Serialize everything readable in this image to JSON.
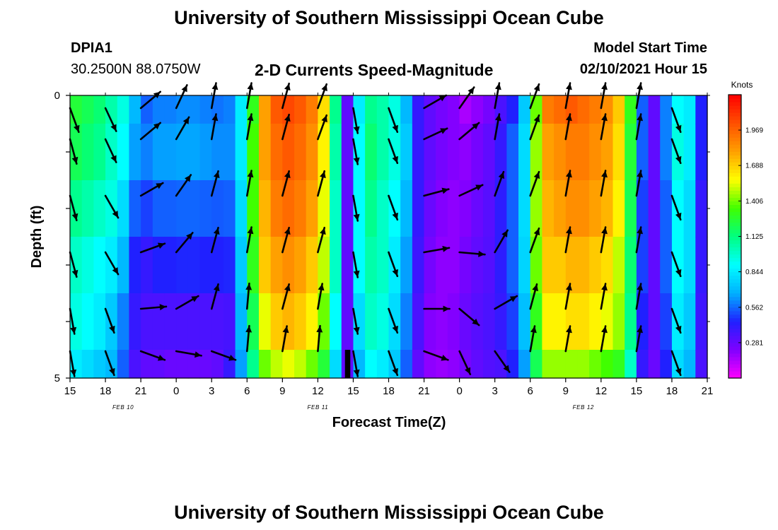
{
  "page": {
    "title_top": "University of Southern Mississippi Ocean Cube",
    "title_bottom": "University of Southern Mississippi Ocean Cube",
    "station_id": "DPIA1",
    "station_coords": "30.2500N 88.0750W",
    "plot_title": "2-D Currents Speed-Magnitude",
    "model_start_label": "Model Start Time",
    "model_start_value": "02/10/2021 Hour 15"
  },
  "chart_data": {
    "type": "heatmap",
    "title": "2-D Currents Speed-Magnitude",
    "xlabel": "Forecast Time(Z)",
    "ylabel": "Depth (ft)",
    "x_tick_labels": [
      "15",
      "18",
      "21",
      "0",
      "3",
      "6",
      "9",
      "12",
      "15",
      "18",
      "21",
      "0",
      "3",
      "6",
      "9",
      "12",
      "15",
      "18",
      "21"
    ],
    "x_range_hours": [
      0,
      54
    ],
    "date_labels": [
      {
        "text": "FEB 10",
        "hour": 4.5
      },
      {
        "text": "FEB 11",
        "hour": 21
      },
      {
        "text": "FEB 12",
        "hour": 43.5
      }
    ],
    "y_tick_labels": [
      {
        "text": "0",
        "depth": 0
      },
      {
        "text": "5",
        "depth": 5
      }
    ],
    "ylim": [
      0,
      5
    ],
    "colorbar": {
      "unit": "Knots",
      "min": 0.0,
      "max": 2.25,
      "tick_labels": [
        "1.969",
        "1.688",
        "1.406",
        "1.125",
        "0.844",
        "0.562",
        "0.281"
      ],
      "tick_values": [
        1.969,
        1.688,
        1.406,
        1.125,
        0.844,
        0.562,
        0.281
      ]
    },
    "colormap": [
      "#ff00ff",
      "#8000ff",
      "#2020ff",
      "#00b0ff",
      "#00ffff",
      "#00ff80",
      "#40ff00",
      "#ffff00",
      "#ffa000",
      "#ff5000",
      "#ff0000"
    ],
    "depth_bins_ft": [
      0.25,
      1.0,
      2.0,
      3.0,
      4.0,
      4.75
    ],
    "columns": [
      {
        "h": 0,
        "s": [
          1.25,
          1.2,
          1.1,
          1.0,
          0.95,
          0.85
        ],
        "d": [
          20,
          15,
          15,
          15,
          10,
          10
        ]
      },
      {
        "h": 1,
        "s": [
          1.2,
          1.15,
          1.05,
          0.95,
          0.9,
          0.8
        ],
        "d": [
          20,
          15,
          15,
          15,
          10,
          10
        ]
      },
      {
        "h": 2,
        "s": [
          1.15,
          1.1,
          1.0,
          0.9,
          0.85,
          0.75
        ],
        "d": [
          20,
          15,
          15,
          15,
          10,
          10
        ]
      },
      {
        "h": 3,
        "s": [
          1.05,
          1.0,
          0.95,
          0.85,
          0.75,
          0.7
        ],
        "d": [
          25,
          25,
          30,
          30,
          20,
          20
        ]
      },
      {
        "h": 4,
        "s": [
          0.95,
          0.9,
          0.8,
          0.7,
          0.6,
          0.55
        ],
        "d": [
          30,
          30,
          30,
          30,
          20,
          20
        ]
      },
      {
        "h": 5,
        "s": [
          0.7,
          0.65,
          0.55,
          0.45,
          0.4,
          0.35
        ],
        "d": [
          40,
          35,
          35,
          40,
          40,
          40
        ]
      },
      {
        "h": 6,
        "s": [
          0.55,
          0.6,
          0.5,
          0.4,
          0.35,
          0.3
        ],
        "d": [
          130,
          130,
          120,
          110,
          95,
          70
        ]
      },
      {
        "h": 7,
        "s": [
          0.6,
          0.65,
          0.55,
          0.45,
          0.35,
          0.3
        ],
        "d": [
          140,
          135,
          130,
          120,
          100,
          75
        ]
      },
      {
        "h": 8,
        "s": [
          0.6,
          0.65,
          0.55,
          0.45,
          0.35,
          0.28
        ],
        "d": [
          150,
          145,
          140,
          130,
          110,
          80
        ]
      },
      {
        "h": 9,
        "s": [
          0.62,
          0.66,
          0.56,
          0.46,
          0.35,
          0.28
        ],
        "d": [
          155,
          150,
          145,
          140,
          120,
          80
        ]
      },
      {
        "h": 10,
        "s": [
          0.62,
          0.66,
          0.56,
          0.46,
          0.35,
          0.28
        ],
        "d": [
          160,
          160,
          155,
          150,
          130,
          75
        ]
      },
      {
        "h": 11,
        "s": [
          0.6,
          0.64,
          0.55,
          0.45,
          0.35,
          0.28
        ],
        "d": [
          165,
          165,
          160,
          160,
          150,
          70
        ]
      },
      {
        "h": 12,
        "s": [
          0.58,
          0.62,
          0.54,
          0.45,
          0.35,
          0.3
        ],
        "d": [
          170,
          170,
          165,
          165,
          165,
          70
        ]
      },
      {
        "h": 13,
        "s": [
          0.6,
          0.62,
          0.55,
          0.46,
          0.36,
          0.4
        ],
        "d": [
          170,
          170,
          170,
          170,
          170,
          65
        ]
      },
      {
        "h": 14,
        "s": [
          0.85,
          0.85,
          0.8,
          0.75,
          0.7,
          0.65
        ],
        "d": [
          170,
          170,
          170,
          170,
          175,
          170
        ]
      },
      {
        "h": 15,
        "s": [
          1.3,
          1.35,
          1.35,
          1.3,
          1.2,
          1.1
        ],
        "d": [
          170,
          170,
          170,
          170,
          175,
          175
        ]
      },
      {
        "h": 16,
        "s": [
          1.8,
          1.8,
          1.75,
          1.7,
          1.55,
          1.4
        ],
        "d": [
          170,
          170,
          170,
          170,
          170,
          170
        ]
      },
      {
        "h": 17,
        "s": [
          2.0,
          1.95,
          1.9,
          1.8,
          1.7,
          1.5
        ],
        "d": [
          170,
          170,
          170,
          170,
          170,
          170
        ]
      },
      {
        "h": 18,
        "s": [
          2.05,
          2.0,
          1.95,
          1.85,
          1.75,
          1.55
        ],
        "d": [
          165,
          165,
          165,
          165,
          165,
          170
        ]
      },
      {
        "h": 19,
        "s": [
          2.0,
          1.95,
          1.9,
          1.8,
          1.7,
          1.5
        ],
        "d": [
          165,
          165,
          165,
          165,
          165,
          170
        ]
      },
      {
        "h": 20,
        "s": [
          1.9,
          1.85,
          1.8,
          1.7,
          1.6,
          1.4
        ],
        "d": [
          160,
          165,
          165,
          165,
          165,
          170
        ]
      },
      {
        "h": 21,
        "s": [
          1.65,
          1.6,
          1.55,
          1.5,
          1.4,
          1.25
        ],
        "d": [
          160,
          160,
          165,
          165,
          170,
          175
        ]
      },
      {
        "h": 22,
        "s": [
          1.1,
          1.05,
          1.0,
          1.0,
          0.9,
          0.8
        ],
        "d": [
          160,
          160,
          165,
          165,
          170,
          175
        ]
      },
      {
        "h": 23,
        "s": [
          0.3,
          0.3,
          0.3,
          0.3,
          0.3,
          0.3
        ],
        "d": [
          165,
          165,
          165,
          165,
          170,
          180
        ]
      },
      {
        "h": 24,
        "s": [
          0.85,
          0.9,
          0.9,
          0.9,
          0.8,
          0.7
        ],
        "d": [
          10,
          10,
          10,
          10,
          10,
          10
        ]
      },
      {
        "h": 25,
        "s": [
          1.1,
          1.15,
          1.1,
          1.05,
          1.0,
          0.9
        ],
        "d": [
          10,
          10,
          10,
          10,
          10,
          10
        ]
      },
      {
        "h": 26,
        "s": [
          1.05,
          1.05,
          1.0,
          1.0,
          0.95,
          0.85
        ],
        "d": [
          15,
          15,
          15,
          15,
          15,
          15
        ]
      },
      {
        "h": 27,
        "s": [
          0.95,
          0.95,
          0.9,
          0.85,
          0.8,
          0.75
        ],
        "d": [
          20,
          20,
          20,
          20,
          20,
          20
        ]
      },
      {
        "h": 28,
        "s": [
          0.7,
          0.75,
          0.7,
          0.65,
          0.6,
          0.55
        ],
        "d": [
          30,
          30,
          30,
          30,
          30,
          30
        ]
      },
      {
        "h": 29,
        "s": [
          0.4,
          0.4,
          0.4,
          0.38,
          0.35,
          0.3
        ],
        "d": [
          55,
          60,
          70,
          80,
          90,
          70
        ]
      },
      {
        "h": 30,
        "s": [
          0.3,
          0.3,
          0.28,
          0.25,
          0.22,
          0.2
        ],
        "d": [
          120,
          115,
          105,
          100,
          90,
          70
        ]
      },
      {
        "h": 31,
        "s": [
          0.25,
          0.25,
          0.22,
          0.2,
          0.2,
          0.18
        ],
        "d": [
          125,
          120,
          110,
          95,
          85,
          70
        ]
      },
      {
        "h": 32,
        "s": [
          0.22,
          0.22,
          0.2,
          0.2,
          0.22,
          0.2
        ],
        "d": [
          130,
          125,
          115,
          90,
          45,
          30
        ]
      },
      {
        "h": 33,
        "s": [
          0.15,
          0.2,
          0.22,
          0.25,
          0.28,
          0.25
        ],
        "d": [
          145,
          130,
          115,
          85,
          50,
          25
        ]
      },
      {
        "h": 34,
        "s": [
          0.2,
          0.25,
          0.28,
          0.3,
          0.32,
          0.3
        ],
        "d": [
          150,
          140,
          125,
          90,
          60,
          30
        ]
      },
      {
        "h": 35,
        "s": [
          0.25,
          0.3,
          0.32,
          0.33,
          0.35,
          0.33
        ],
        "d": [
          170,
          165,
          150,
          130,
          100,
          30
        ]
      },
      {
        "h": 36,
        "s": [
          0.35,
          0.4,
          0.42,
          0.42,
          0.4,
          0.35
        ],
        "d": [
          170,
          170,
          160,
          150,
          120,
          35
        ]
      },
      {
        "h": 37,
        "s": [
          0.45,
          0.55,
          0.55,
          0.55,
          0.5,
          0.45
        ],
        "d": [
          170,
          170,
          165,
          155,
          140,
          40
        ]
      },
      {
        "h": 38,
        "s": [
          0.75,
          0.8,
          0.8,
          0.78,
          0.72,
          0.65
        ],
        "d": [
          165,
          165,
          160,
          160,
          165,
          170
        ]
      },
      {
        "h": 39,
        "s": [
          1.4,
          1.45,
          1.45,
          1.4,
          1.3,
          1.2
        ],
        "d": [
          160,
          160,
          160,
          160,
          165,
          170
        ]
      },
      {
        "h": 40,
        "s": [
          1.9,
          1.8,
          1.75,
          1.7,
          1.6,
          1.45
        ],
        "d": [
          160,
          160,
          160,
          160,
          165,
          170
        ]
      },
      {
        "h": 41,
        "s": [
          1.95,
          1.85,
          1.8,
          1.7,
          1.6,
          1.45
        ],
        "d": [
          165,
          165,
          165,
          165,
          165,
          170
        ]
      },
      {
        "h": 42,
        "s": [
          2.0,
          1.9,
          1.85,
          1.75,
          1.65,
          1.45
        ],
        "d": [
          170,
          170,
          170,
          170,
          170,
          170
        ]
      },
      {
        "h": 43,
        "s": [
          1.95,
          1.9,
          1.85,
          1.75,
          1.65,
          1.45
        ],
        "d": [
          170,
          170,
          170,
          170,
          170,
          170
        ]
      },
      {
        "h": 44,
        "s": [
          1.9,
          1.85,
          1.8,
          1.7,
          1.6,
          1.4
        ],
        "d": [
          170,
          170,
          170,
          170,
          170,
          170
        ]
      },
      {
        "h": 45,
        "s": [
          1.85,
          1.8,
          1.75,
          1.65,
          1.55,
          1.35
        ],
        "d": [
          170,
          170,
          170,
          170,
          170,
          170
        ]
      },
      {
        "h": 46,
        "s": [
          1.7,
          1.65,
          1.6,
          1.5,
          1.45,
          1.3
        ],
        "d": [
          170,
          170,
          170,
          170,
          170,
          170
        ]
      },
      {
        "h": 47,
        "s": [
          1.3,
          1.25,
          1.2,
          1.15,
          1.1,
          1.0
        ],
        "d": [
          170,
          170,
          170,
          170,
          170,
          170
        ]
      },
      {
        "h": 48,
        "s": [
          0.55,
          0.55,
          0.5,
          0.5,
          0.45,
          0.4
        ],
        "d": [
          170,
          170,
          170,
          170,
          170,
          170
        ]
      },
      {
        "h": 49,
        "s": [
          0.3,
          0.3,
          0.3,
          0.3,
          0.3,
          0.28
        ],
        "d": [
          170,
          170,
          170,
          170,
          170,
          175
        ]
      },
      {
        "h": 50,
        "s": [
          0.6,
          0.6,
          0.55,
          0.55,
          0.5,
          0.45
        ],
        "d": [
          20,
          20,
          20,
          20,
          20,
          20
        ]
      },
      {
        "h": 51,
        "s": [
          0.9,
          0.95,
          0.9,
          0.9,
          0.85,
          0.8
        ],
        "d": [
          20,
          20,
          20,
          20,
          20,
          20
        ]
      },
      {
        "h": 52,
        "s": [
          0.85,
          0.85,
          0.8,
          0.8,
          0.75,
          0.7
        ],
        "d": [
          20,
          20,
          20,
          20,
          20,
          20
        ]
      },
      {
        "h": 53,
        "s": [
          0.45,
          0.45,
          0.4,
          0.4,
          0.38,
          0.35
        ],
        "d": [
          25,
          25,
          25,
          25,
          25,
          25
        ]
      }
    ],
    "arrow_hours": [
      0,
      3,
      6,
      9,
      12,
      15,
      18,
      21,
      24,
      27,
      30,
      33,
      36,
      39,
      42,
      45,
      48,
      51
    ],
    "missing_cell": {
      "hour": 23,
      "depth_bin": 5,
      "color": "#000000"
    }
  }
}
